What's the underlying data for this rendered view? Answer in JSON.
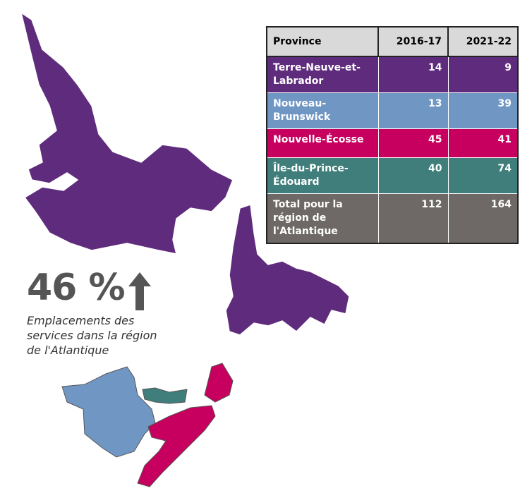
{
  "stat": {
    "value": "46 %",
    "caption": "Emplacements des services dans la région de l'Atlantique"
  },
  "table": {
    "header": [
      "Province",
      "2016-17",
      "2021-22"
    ],
    "rows": [
      [
        "Terre-Neuve-et-Labrador",
        14,
        9
      ],
      [
        "Nouveau-Brunswick",
        13,
        39
      ],
      [
        "Nouvelle-Écosse",
        45,
        41
      ],
      [
        "Île-du-Prince-Édouard",
        40,
        74
      ],
      [
        "Total pour la région de l'Atlantique",
        112,
        164
      ]
    ]
  }
}
